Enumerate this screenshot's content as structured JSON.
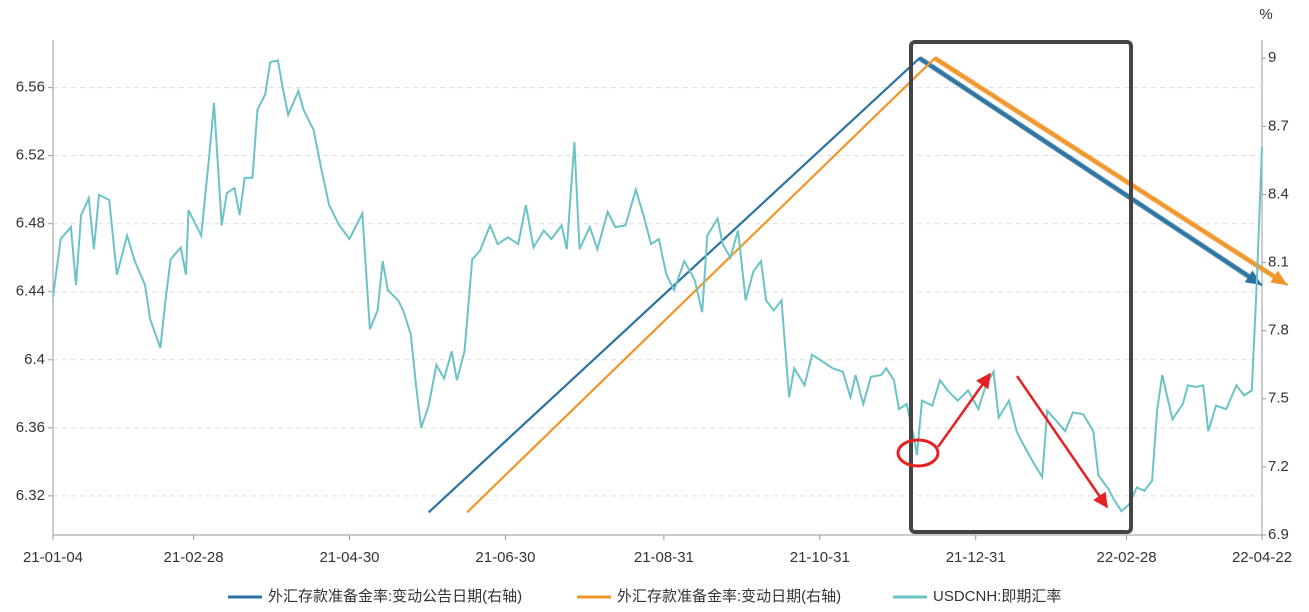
{
  "chart_data": {
    "type": "line",
    "xlim": [
      "21-01-04",
      "22-04-22"
    ],
    "xticks": [
      "21-01-04",
      "21-02-28",
      "21-04-30",
      "21-06-30",
      "21-08-31",
      "21-10-31",
      "21-12-31",
      "22-02-28",
      "22-04-22"
    ],
    "ylim": [
      6.297,
      6.588
    ],
    "yticks": [
      6.32,
      6.36,
      6.4,
      6.44,
      6.48,
      6.52,
      6.56
    ],
    "y2lim": [
      6.9,
      9.08
    ],
    "y2ticks": [
      6.9,
      7.2,
      7.5,
      7.8,
      8.1,
      8.4,
      8.7,
      9
    ],
    "y2_label": "%",
    "grid": true,
    "legend": "bottom",
    "series": [
      {
        "name": "外汇存款准备金率:变动公告日期(右轴)",
        "color": "#2a73a0",
        "axis": "y2",
        "x": [
          "21-05-31",
          "21-12-09",
          "22-04-22"
        ],
        "values": [
          7,
          9,
          8
        ]
      },
      {
        "name": "外汇存款准备金率:变动日期(右轴)",
        "color": "#f0952a",
        "axis": "y2",
        "x": [
          "21-06-15",
          "21-12-15",
          "22-05-02"
        ],
        "values": [
          7,
          9,
          8
        ]
      },
      {
        "name": "USDCNH:即期汇率",
        "color": "#6cc3c7",
        "x": [
          "21-01-04",
          "21-01-07",
          "21-01-11",
          "21-01-13",
          "21-01-15",
          "21-01-18",
          "21-01-20",
          "21-01-22",
          "21-01-26",
          "21-01-29",
          "21-02-02",
          "21-02-05",
          "21-02-09",
          "21-02-11",
          "21-02-15",
          "21-02-17",
          "21-02-19",
          "21-02-23",
          "21-02-25",
          "21-02-26",
          "21-03-01",
          "21-03-03",
          "21-03-06",
          "21-03-08",
          "21-03-11",
          "21-03-13",
          "21-03-16",
          "21-03-18",
          "21-03-20",
          "21-03-23",
          "21-03-25",
          "21-03-28",
          "21-03-30",
          "21-04-02",
          "21-04-04",
          "21-04-06",
          "21-04-10",
          "21-04-12",
          "21-04-16",
          "21-04-19",
          "21-04-22",
          "21-04-26",
          "21-04-30",
          "21-05-05",
          "21-05-08",
          "21-05-11",
          "21-05-13",
          "21-05-15",
          "21-05-19",
          "21-05-21",
          "21-05-24",
          "21-05-26",
          "21-05-28",
          "21-05-31",
          "21-06-03",
          "21-06-06",
          "21-06-09",
          "21-06-11",
          "21-06-14",
          "21-06-17",
          "21-06-20",
          "21-06-24",
          "21-06-27",
          "21-07-01",
          "21-07-05",
          "21-07-08",
          "21-07-11",
          "21-07-15",
          "21-07-18",
          "21-07-22",
          "21-07-24",
          "21-07-27",
          "21-07-29",
          "21-08-02",
          "21-08-05",
          "21-08-09",
          "21-08-12",
          "21-08-16",
          "21-08-20",
          "21-08-23",
          "21-08-26",
          "21-08-29",
          "21-09-01",
          "21-09-04",
          "21-09-08",
          "21-09-12",
          "21-09-15",
          "21-09-17",
          "21-09-21",
          "21-09-23",
          "21-09-26",
          "21-09-29",
          "21-10-02",
          "21-10-05",
          "21-10-08",
          "21-10-10",
          "21-10-13",
          "21-10-16",
          "21-10-19",
          "21-10-21",
          "21-10-25",
          "21-10-28",
          "21-11-01",
          "21-11-05",
          "21-11-09",
          "21-11-12",
          "21-11-14",
          "21-11-17",
          "21-11-20",
          "21-11-24",
          "21-11-26",
          "21-11-29",
          "21-12-01",
          "21-12-04",
          "21-12-07",
          "21-12-08",
          "21-12-10",
          "21-12-14",
          "21-12-17",
          "21-12-20",
          "21-12-24",
          "21-12-28",
          "22-01-01",
          "22-01-04",
          "22-01-07",
          "22-01-09",
          "22-01-13",
          "22-01-16",
          "22-01-18",
          "22-01-22",
          "22-01-26",
          "22-01-28",
          "22-01-31",
          "22-02-04",
          "22-02-07",
          "22-02-11",
          "22-02-15",
          "22-02-17",
          "22-02-21",
          "22-02-23",
          "22-02-26",
          "22-03-01",
          "22-03-04",
          "22-03-07",
          "22-03-10",
          "22-03-12",
          "22-03-14",
          "22-03-18",
          "22-03-22",
          "22-03-24",
          "22-03-27",
          "22-03-30",
          "22-04-01",
          "22-04-04",
          "22-04-08",
          "22-04-12",
          "22-04-15",
          "22-04-18",
          "22-04-20",
          "22-04-22"
        ],
        "values": [
          6.437,
          6.471,
          6.478,
          6.444,
          6.485,
          6.495,
          6.465,
          6.497,
          6.494,
          6.45,
          6.473,
          6.458,
          6.444,
          6.424,
          6.407,
          6.435,
          6.459,
          6.466,
          6.45,
          6.488,
          6.479,
          6.473,
          6.518,
          6.551,
          6.479,
          6.498,
          6.501,
          6.485,
          6.507,
          6.507,
          6.547,
          6.556,
          6.575,
          6.576,
          6.559,
          6.544,
          6.558,
          6.547,
          6.535,
          6.512,
          6.491,
          6.479,
          6.471,
          6.486,
          6.418,
          6.429,
          6.458,
          6.441,
          6.435,
          6.429,
          6.415,
          6.385,
          6.36,
          6.373,
          6.397,
          6.389,
          6.405,
          6.388,
          6.405,
          6.459,
          6.464,
          6.479,
          6.468,
          6.472,
          6.468,
          6.491,
          6.466,
          6.476,
          6.471,
          6.479,
          6.465,
          6.528,
          6.465,
          6.478,
          6.465,
          6.487,
          6.478,
          6.479,
          6.5,
          6.485,
          6.468,
          6.471,
          6.45,
          6.441,
          6.458,
          6.447,
          6.428,
          6.473,
          6.483,
          6.468,
          6.46,
          6.476,
          6.435,
          6.452,
          6.458,
          6.435,
          6.429,
          6.435,
          6.378,
          6.395,
          6.385,
          6.403,
          6.399,
          6.395,
          6.393,
          6.378,
          6.391,
          6.374,
          6.39,
          6.391,
          6.395,
          6.388,
          6.371,
          6.374,
          6.353,
          6.344,
          6.376,
          6.373,
          6.388,
          6.382,
          6.376,
          6.382,
          6.371,
          6.385,
          6.393,
          6.366,
          6.376,
          6.358,
          6.352,
          6.341,
          6.331,
          6.37,
          6.365,
          6.358,
          6.369,
          6.368,
          6.358,
          6.332,
          6.324,
          6.318,
          6.311,
          6.315,
          6.325,
          6.323,
          6.329,
          6.371,
          6.391,
          6.365,
          6.374,
          6.385,
          6.384,
          6.385,
          6.358,
          6.373,
          6.371,
          6.385,
          6.379,
          6.382,
          6.447,
          6.525
        ]
      }
    ]
  }
}
